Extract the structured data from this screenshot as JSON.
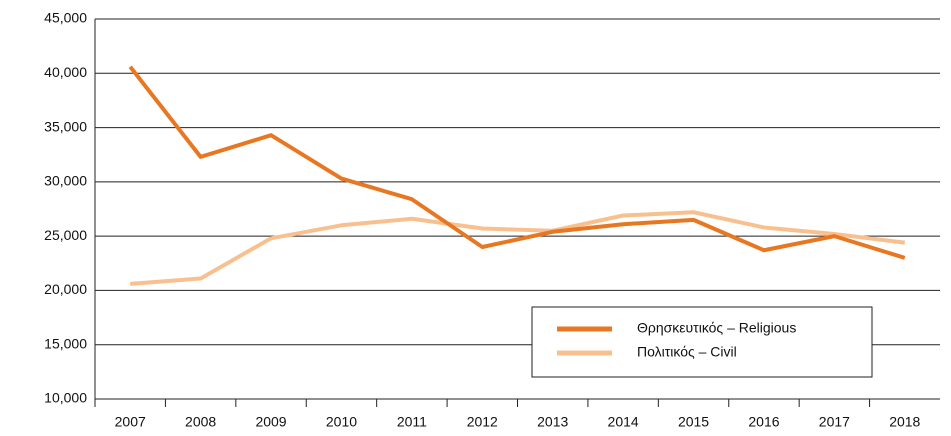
{
  "chart_data": {
    "type": "line",
    "categories": [
      "2007",
      "2008",
      "2009",
      "2010",
      "2011",
      "2012",
      "2013",
      "2014",
      "2015",
      "2016",
      "2017",
      "2018"
    ],
    "series": [
      {
        "name": "Θρησκευτικός – Religious",
        "color": "#e87722",
        "values": [
          40600,
          32300,
          34300,
          30300,
          28400,
          24000,
          25400,
          26100,
          26500,
          23700,
          25000,
          23000
        ]
      },
      {
        "name": "Πολιτικός – Civil",
        "color": "#f9c08f",
        "values": [
          20600,
          21100,
          24800,
          26000,
          26600,
          25700,
          25500,
          26900,
          27200,
          25800,
          25200,
          24400
        ]
      }
    ],
    "ylim": [
      10000,
      45000
    ],
    "yticks": [
      {
        "value": 10000,
        "label": "10,000"
      },
      {
        "value": 15000,
        "label": "15,000"
      },
      {
        "value": 20000,
        "label": "20,000"
      },
      {
        "value": 25000,
        "label": "25,000"
      },
      {
        "value": 30000,
        "label": "30,000"
      },
      {
        "value": 35000,
        "label": "35,000"
      },
      {
        "value": 40000,
        "label": "40,000"
      },
      {
        "value": 45000,
        "label": "45,000"
      }
    ],
    "grid": true,
    "legend": "lower right"
  }
}
